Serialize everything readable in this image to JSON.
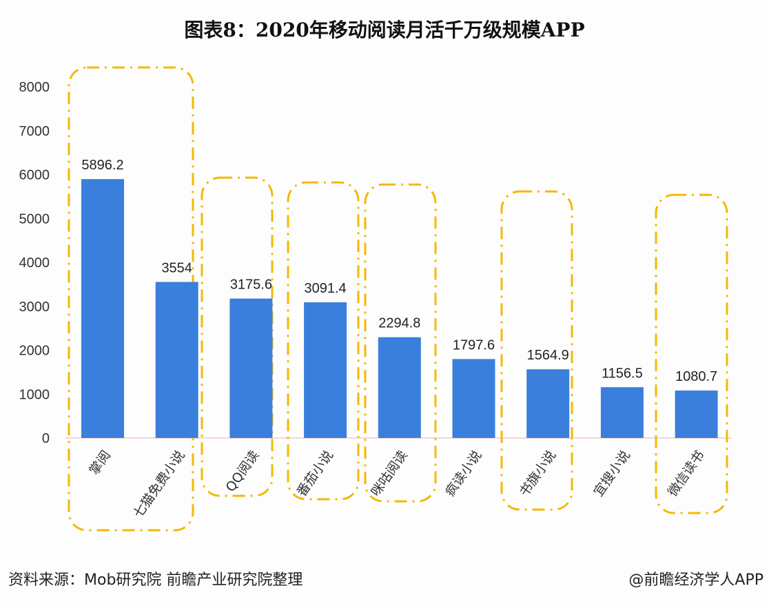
{
  "title": "图表8：2020年移动阅读月活千万级规模APP",
  "source": "资料来源：Mob研究院   前瞻产业研究院整理",
  "credit": "@前瞻经济学人APP",
  "colors": {
    "bar": "#3a7fdc",
    "highlight_box": "#f5b800"
  },
  "chart_data": {
    "type": "bar",
    "title": "图表8：2020年移动阅读月活千万级规模APP",
    "categories": [
      "掌阅",
      "七猫免费小说",
      "QQ阅读",
      "番茄小说",
      "咪咕阅读",
      "疯读小说",
      "书旗小说",
      "宜搜小说",
      "微信读书"
    ],
    "values": [
      5896.2,
      3554,
      3175.6,
      3091.4,
      2294.8,
      1797.6,
      1564.9,
      1156.5,
      1080.7
    ],
    "data_labels": [
      "5896.2",
      "3554",
      "3175.6",
      "3091.4",
      "2294.8",
      "1797.6",
      "1564.9",
      "1156.5",
      "1080.7"
    ],
    "yticks": [
      0,
      1000,
      2000,
      3000,
      4000,
      5000,
      6000,
      7000,
      8000
    ],
    "ylim": [
      0,
      8000
    ],
    "grid": false,
    "highlight_groups": [
      [
        0,
        1
      ],
      [
        2
      ],
      [
        3
      ],
      [
        4
      ],
      [
        6
      ],
      [
        8
      ]
    ]
  }
}
